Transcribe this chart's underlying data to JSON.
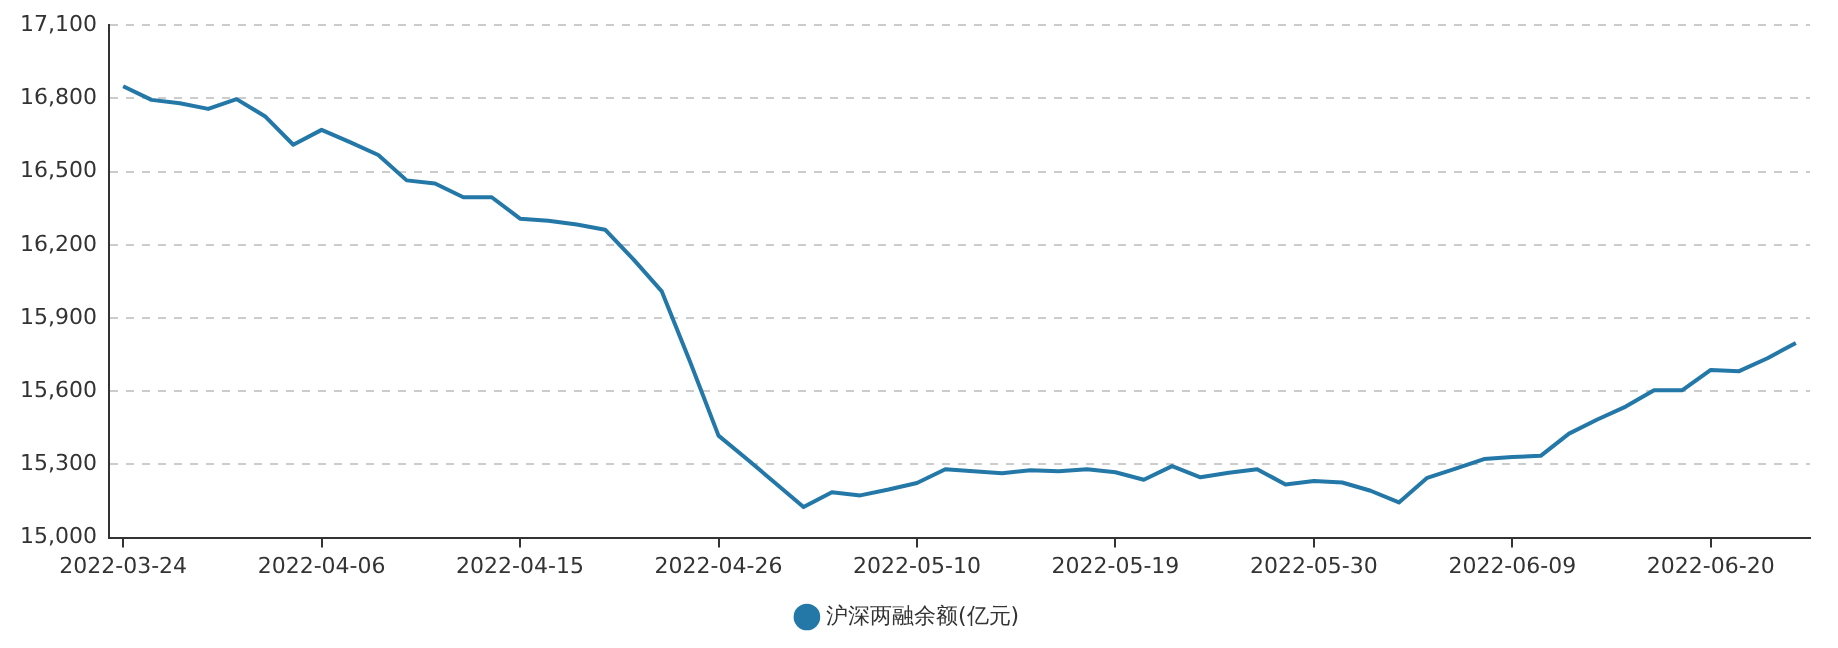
{
  "chart_data": {
    "type": "line",
    "categories": [
      "2022-03-24",
      null,
      null,
      null,
      null,
      null,
      null,
      "2022-04-06",
      null,
      null,
      null,
      null,
      null,
      null,
      "2022-04-15",
      null,
      null,
      null,
      null,
      null,
      null,
      "2022-04-26",
      null,
      null,
      null,
      null,
      null,
      null,
      "2022-05-10",
      null,
      null,
      null,
      null,
      null,
      null,
      "2022-05-19",
      null,
      null,
      null,
      null,
      null,
      null,
      "2022-05-30",
      null,
      null,
      null,
      null,
      null,
      null,
      "2022-06-09",
      null,
      null,
      null,
      null,
      null,
      null,
      "2022-06-20",
      null,
      null,
      null
    ],
    "series": [
      {
        "name": "沪深两融余额(亿元)",
        "color": "#2378a8",
        "values": [
          16850,
          16794,
          16780,
          16757,
          16797,
          16727,
          16610,
          16671,
          16621,
          16568,
          16464,
          16451,
          16395,
          16395,
          16307,
          16299,
          16283,
          16262,
          16140,
          16009,
          15720,
          15418,
          15322,
          15224,
          15125,
          15186,
          15173,
          15197,
          15224,
          15280,
          15272,
          15264,
          15276,
          15272,
          15280,
          15268,
          15237,
          15293,
          15247,
          15266,
          15280,
          15218,
          15232,
          15226,
          15192,
          15144,
          15245,
          15283,
          15322,
          15330,
          15335,
          15426,
          15484,
          15537,
          15604,
          15604,
          15687,
          15682,
          15735,
          15798
        ]
      }
    ],
    "ylim": [
      15000,
      17100
    ],
    "yticks": [
      {
        "value": 15000,
        "label": "15,000"
      },
      {
        "value": 15300,
        "label": "15,300"
      },
      {
        "value": 15600,
        "label": "15,600"
      },
      {
        "value": 15900,
        "label": "15,900"
      },
      {
        "value": 16200,
        "label": "16,200"
      },
      {
        "value": 16500,
        "label": "16,500"
      },
      {
        "value": 16800,
        "label": "16,800"
      },
      {
        "value": 17100,
        "label": "17,100"
      }
    ],
    "grid": "y",
    "legend": "bottom",
    "marker": "none",
    "line_style": "solid"
  }
}
